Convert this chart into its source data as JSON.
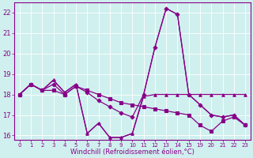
{
  "xlabel": "Windchill (Refroidissement éolien,°C)",
  "bg_color": "#cff0ee",
  "line_color": "#880088",
  "xlim": [
    -0.5,
    20.5
  ],
  "ylim": [
    15.8,
    22.5
  ],
  "yticks": [
    16,
    17,
    18,
    19,
    20,
    21,
    22
  ],
  "xtick_positions": [
    0,
    1,
    2,
    3,
    4,
    5,
    6,
    7,
    8,
    9,
    10,
    11,
    12,
    13,
    14,
    15,
    16,
    17,
    18,
    19,
    20
  ],
  "xtick_labels": [
    "0",
    "1",
    "2",
    "3",
    "4",
    "5",
    "6",
    "7",
    "8",
    "9",
    "10",
    "11",
    "12",
    "13",
    "14",
    "15",
    "19",
    "20",
    "21",
    "22",
    "23"
  ],
  "series": [
    {
      "x": [
        0,
        1,
        2,
        3,
        4,
        5,
        6,
        7,
        8,
        9,
        10,
        11,
        12,
        13,
        14,
        15,
        16,
        17,
        18,
        19,
        20
      ],
      "y": [
        18.0,
        18.5,
        18.2,
        18.7,
        18.1,
        18.5,
        16.1,
        16.6,
        15.9,
        15.9,
        16.1,
        17.9,
        18.0,
        18.0,
        18.0,
        18.0,
        18.0,
        18.0,
        18.0,
        18.0,
        18.0
      ],
      "marker": "^"
    },
    {
      "x": [
        0,
        1,
        2,
        3,
        4,
        5,
        6,
        7,
        8,
        9,
        10,
        11,
        12,
        13,
        14,
        15,
        16,
        17,
        18,
        19,
        20
      ],
      "y": [
        18.0,
        18.5,
        18.2,
        18.7,
        18.1,
        18.5,
        16.1,
        16.6,
        15.9,
        15.9,
        16.1,
        18.0,
        20.3,
        22.2,
        21.9,
        18.0,
        17.5,
        17.0,
        16.9,
        17.0,
        16.5
      ],
      "marker": "+"
    },
    {
      "x": [
        0,
        1,
        2,
        3,
        4,
        5,
        6,
        7,
        8,
        9,
        10,
        11,
        12,
        13,
        14,
        15,
        16,
        17,
        18,
        19,
        20
      ],
      "y": [
        18.0,
        18.5,
        18.2,
        18.2,
        18.0,
        18.4,
        18.2,
        18.0,
        17.8,
        17.6,
        17.5,
        17.4,
        17.3,
        17.2,
        17.1,
        17.0,
        16.5,
        16.2,
        16.7,
        16.9,
        16.5
      ],
      "marker": "s"
    },
    {
      "x": [
        0,
        1,
        2,
        3,
        4,
        5,
        6,
        7,
        8,
        9,
        10,
        11,
        12,
        13,
        14,
        15,
        16,
        17,
        18,
        19,
        20
      ],
      "y": [
        18.0,
        18.5,
        18.2,
        18.5,
        18.0,
        18.4,
        18.1,
        17.7,
        17.4,
        17.1,
        16.9,
        18.0,
        20.3,
        22.2,
        21.9,
        18.0,
        17.5,
        17.0,
        16.9,
        17.0,
        16.5
      ],
      "marker": "D"
    }
  ]
}
